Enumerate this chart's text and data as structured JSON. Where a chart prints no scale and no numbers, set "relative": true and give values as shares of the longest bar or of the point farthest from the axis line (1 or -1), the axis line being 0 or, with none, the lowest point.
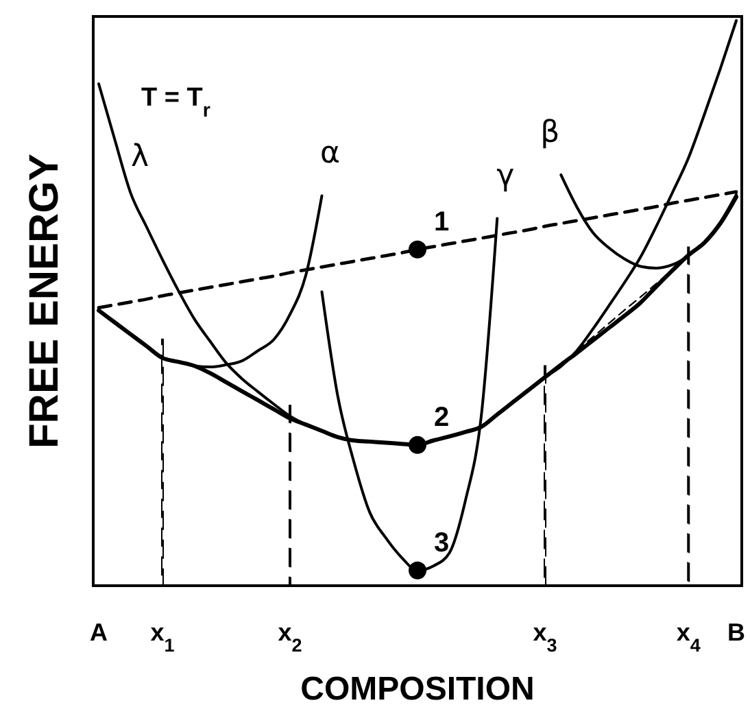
{
  "chart_data": {
    "type": "line",
    "relative": true,
    "xlabel": "COMPOSITION",
    "ylabel": "FREE ENERGY",
    "tick_labels": "x",
    "grid": false,
    "categories": [
      "A",
      null,
      null,
      null,
      "x$_{1}$",
      null,
      null,
      null,
      null,
      null,
      null,
      null,
      "x$_{2}$",
      null,
      null,
      null,
      null,
      null,
      null,
      null,
      null,
      null,
      null,
      null,
      null,
      null,
      null,
      null,
      "x$_{3}$",
      null,
      null,
      null,
      null,
      null,
      null,
      null,
      null,
      "x$_{4}$",
      null,
      null,
      "B"
    ],
    "series": [
      {
        "color": "#000000",
        "line_style": "dashed",
        "values": [
          0.492,
          0.497,
          0.502,
          0.507,
          0.513,
          0.518,
          0.523,
          0.528,
          0.533,
          0.538,
          0.543,
          0.548,
          0.554,
          0.559,
          0.564,
          0.569,
          0.574,
          0.579,
          0.584,
          0.589,
          0.595,
          0.6,
          0.605,
          0.61,
          0.615,
          0.62,
          0.625,
          0.63,
          0.636,
          0.641,
          0.646,
          0.651,
          0.656,
          0.661,
          0.666,
          0.671,
          0.677,
          0.682,
          0.687,
          0.692,
          0.697
        ]
      },
      {
        "color": "#000000",
        "line_style": "solid",
        "values": [
          0.487,
          0.466,
          0.445,
          0.424,
          0.403,
          0.396,
          0.389,
          0.376,
          0.36,
          0.344,
          0.328,
          0.312,
          0.296,
          0.285,
          0.274,
          0.263,
          0.257,
          0.255,
          0.253,
          0.251,
          0.249,
          0.257,
          0.264,
          0.272,
          0.281,
          0.303,
          0.325,
          0.347,
          0.369,
          0.391,
          0.412,
          0.434,
          0.456,
          0.478,
          0.501,
          0.53,
          0.558,
          0.585,
          0.607,
          0.641,
          0.688
        ]
      },
      {
        "name": "λ",
        "color": "#000000",
        "line_style": "solid",
        "values": [
          0.888,
          0.79,
          0.695,
          0.635,
          0.577,
          0.522,
          0.472,
          0.432,
          0.394,
          0.366,
          0.343,
          0.321,
          0.3,
          0.285,
          0.274,
          0.263,
          0.257,
          0.255,
          0.253,
          0.251,
          0.249,
          0.257,
          0.264,
          0.272,
          0.281,
          0.303,
          0.325,
          0.347,
          0.369,
          0.388,
          0.416,
          0.454,
          0.495,
          0.537,
          0.582,
          0.637,
          0.696,
          0.757,
          0.834,
          0.915,
          1
        ]
      },
      {
        "name": "α",
        "color": "#000000",
        "line_style": "solid",
        "values": [
          null,
          null,
          null,
          null,
          0.403,
          0.396,
          0.389,
          0.387,
          0.391,
          0.398,
          0.416,
          0.436,
          0.48,
          0.55,
          0.69,
          null,
          null,
          null,
          null,
          null,
          null,
          null,
          null,
          null,
          null,
          null,
          null,
          null,
          null,
          null,
          null,
          null,
          null,
          null,
          null,
          null,
          null,
          null,
          null,
          null,
          null
        ]
      },
      {
        "name": "γ",
        "color": "#000000",
        "line_style": "solid",
        "values": [
          null,
          null,
          null,
          null,
          null,
          null,
          null,
          null,
          null,
          null,
          null,
          null,
          null,
          null,
          0.52,
          0.335,
          0.22,
          0.13,
          0.085,
          0.05,
          0.027,
          0.035,
          0.058,
          0.15,
          0.3,
          0.65,
          null,
          null,
          null,
          null,
          null,
          null,
          null,
          null,
          null,
          null,
          null,
          null,
          null,
          null,
          null
        ]
      },
      {
        "name": "β",
        "color": "#000000",
        "line_style": "solid",
        "values": [
          null,
          null,
          null,
          null,
          null,
          null,
          null,
          null,
          null,
          null,
          null,
          null,
          null,
          null,
          null,
          null,
          null,
          null,
          null,
          null,
          null,
          null,
          null,
          null,
          null,
          null,
          null,
          null,
          null,
          0.727,
          0.67,
          0.625,
          0.598,
          0.578,
          0.565,
          0.562,
          0.568,
          0.584,
          0.608,
          0.643,
          0.692
        ]
      },
      {
        "color": "#000000",
        "line_style": "dashed",
        "values": [
          null,
          null,
          null,
          null,
          null,
          null,
          0.389,
          0.374,
          0.358,
          0.342,
          0.326,
          0.31,
          null,
          null,
          null,
          null,
          null,
          null,
          null,
          null,
          null,
          null,
          null,
          null,
          null,
          null,
          null,
          null,
          null,
          null,
          null,
          null,
          null,
          null,
          null,
          null,
          null,
          null,
          null,
          null,
          null
        ]
      },
      {
        "color": "#000000",
        "line_style": "dashed",
        "values": [
          null,
          null,
          null,
          null,
          null,
          null,
          null,
          null,
          null,
          null,
          null,
          null,
          null,
          null,
          null,
          null,
          null,
          null,
          null,
          null,
          null,
          null,
          null,
          null,
          null,
          null,
          null,
          null,
          null,
          null,
          0.417,
          0.44,
          0.464,
          0.488,
          0.511,
          0.535,
          0.559,
          null,
          null,
          null,
          null
        ]
      },
      {
        "type": "bar",
        "color": "#000000",
        "line_style": "dashed",
        "values": [
          null,
          null,
          null,
          null,
          0.436,
          null,
          null,
          null,
          null,
          null,
          null,
          null,
          0.319,
          null,
          null,
          null,
          null,
          null,
          null,
          null,
          null,
          null,
          null,
          null,
          null,
          null,
          null,
          null,
          0.389,
          null,
          null,
          null,
          null,
          null,
          null,
          null,
          null,
          0.599,
          null,
          null,
          null
        ]
      },
      {
        "type": "scatter",
        "name": "1",
        "marker": "circle",
        "color": "#000000",
        "values": [
          null,
          null,
          null,
          null,
          null,
          null,
          null,
          null,
          null,
          null,
          null,
          null,
          null,
          null,
          null,
          null,
          null,
          null,
          null,
          null,
          0.595,
          null,
          null,
          null,
          null,
          null,
          null,
          null,
          null,
          null,
          null,
          null,
          null,
          null,
          null,
          null,
          null,
          null,
          null,
          null,
          null
        ]
      },
      {
        "type": "scatter",
        "name": "2",
        "marker": "circle",
        "color": "#000000",
        "values": [
          null,
          null,
          null,
          null,
          null,
          null,
          null,
          null,
          null,
          null,
          null,
          null,
          null,
          null,
          null,
          null,
          null,
          null,
          null,
          null,
          0.249,
          null,
          null,
          null,
          null,
          null,
          null,
          null,
          null,
          null,
          null,
          null,
          null,
          null,
          null,
          null,
          null,
          null,
          null,
          null,
          null
        ]
      },
      {
        "type": "scatter",
        "name": "3",
        "marker": "circle",
        "color": "#000000",
        "values": [
          null,
          null,
          null,
          null,
          null,
          null,
          null,
          null,
          null,
          null,
          null,
          null,
          null,
          null,
          null,
          null,
          null,
          null,
          null,
          null,
          0.027,
          null,
          null,
          null,
          null,
          null,
          null,
          null,
          null,
          null,
          null,
          null,
          null,
          null,
          null,
          null,
          null,
          null,
          null,
          null,
          null
        ]
      }
    ],
    "annotations": [
      "T = T$_{r}$"
    ]
  }
}
